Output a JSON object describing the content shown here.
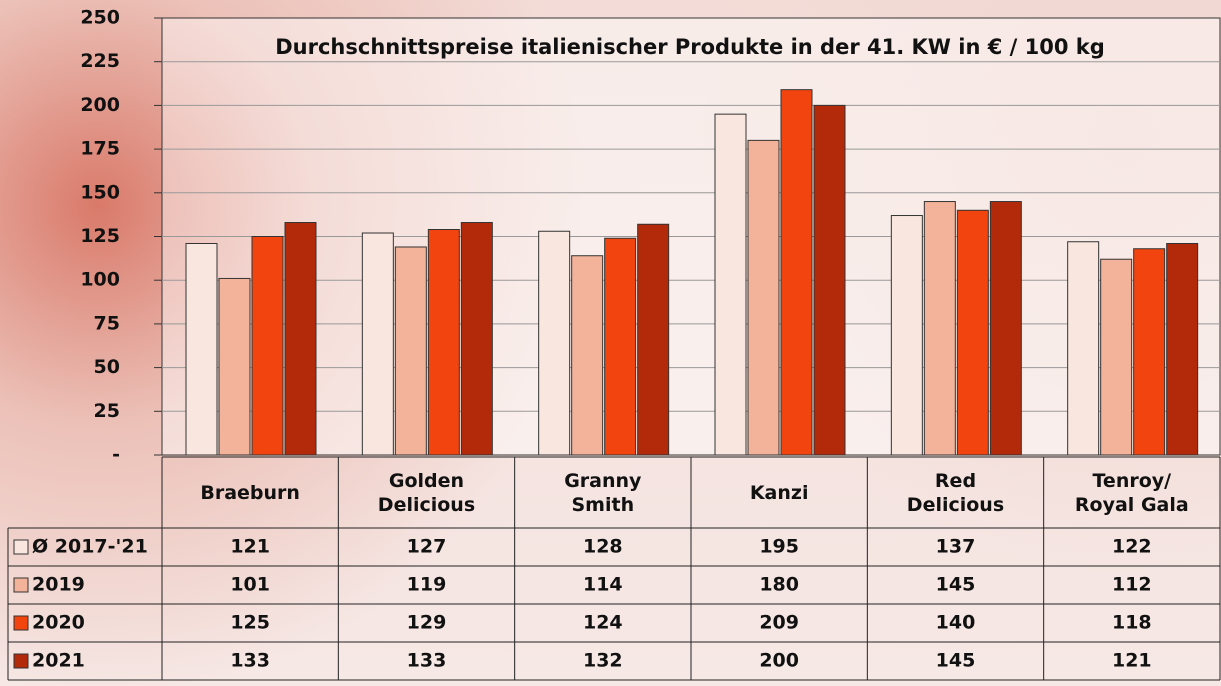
{
  "chart_data": {
    "type": "bar",
    "title": "Durchschnittspreise italienischer Produkte in der 41. KW in € / 100 kg",
    "categories": [
      "Braeburn",
      "Golden Delicious",
      "Granny Smith",
      "Kanzi",
      "Red Delicious",
      "Tenroy/ Royal Gala"
    ],
    "series": [
      {
        "name": "Ø 2017-'21",
        "color": "#f9e6df",
        "values": [
          121,
          127,
          128,
          195,
          137,
          122
        ]
      },
      {
        "name": "2019",
        "color": "#f3b29a",
        "values": [
          101,
          119,
          114,
          180,
          145,
          112
        ]
      },
      {
        "name": "2020",
        "color": "#f2440f",
        "values": [
          125,
          129,
          124,
          209,
          140,
          118
        ]
      },
      {
        "name": "2021",
        "color": "#b32a0b",
        "values": [
          133,
          133,
          132,
          200,
          145,
          121
        ]
      }
    ],
    "ylim": [
      0,
      250
    ],
    "yticks": [
      {
        "value": 0,
        "label": "-"
      },
      25,
      50,
      75,
      100,
      125,
      150,
      175,
      200,
      225,
      250
    ],
    "grid": true
  }
}
